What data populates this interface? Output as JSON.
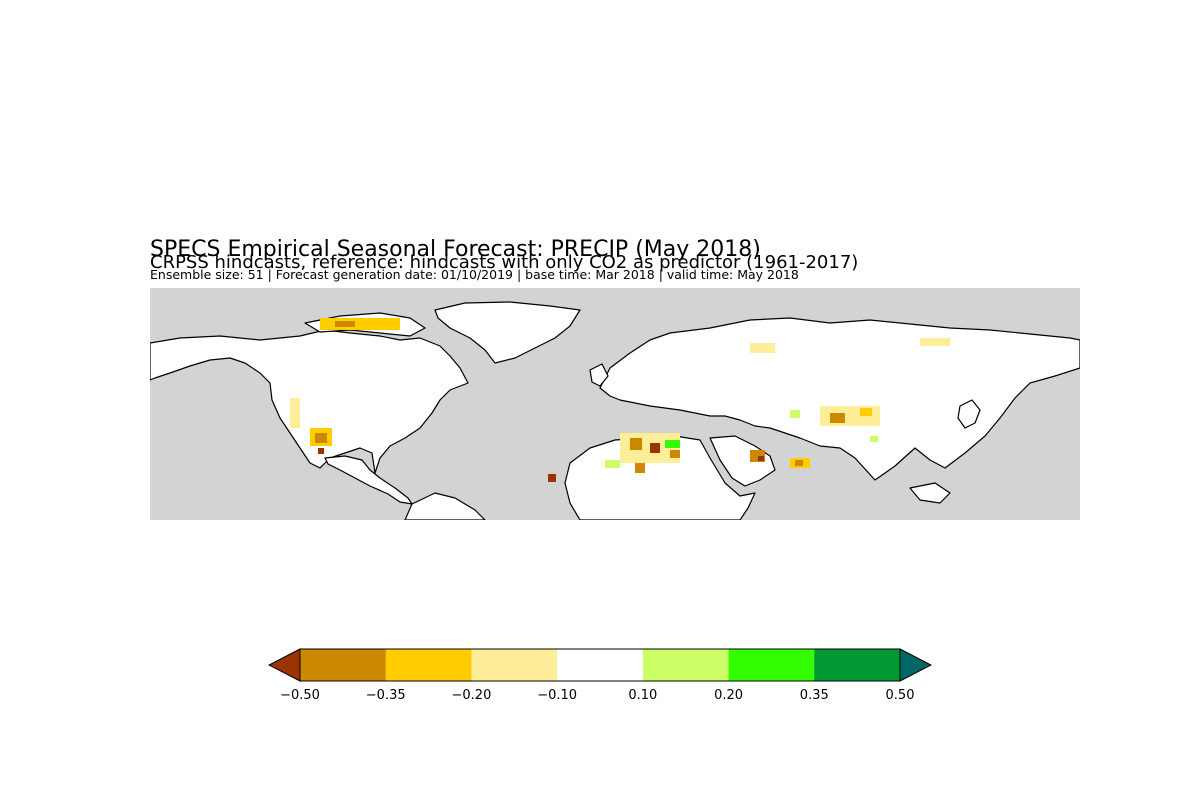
{
  "header": {
    "title": "SPECS Empirical Seasonal Forecast: PRECIP (May 2018)",
    "subtitle": "CRPSS hindcasts, reference: hindcasts with only CO2 as predictor (1961-2017)",
    "info": "Ensemble size: 51 | Forecast generation date: 01/10/2019 | base time: Mar 2018 | valid time: May 2018"
  },
  "map": {
    "ocean_color": "#d3d3d3",
    "land_color": "#ffffff",
    "coastline_color": "#000000"
  },
  "colorbar": {
    "ticks": [
      "−0.50",
      "−0.35",
      "−0.20",
      "−0.10",
      "0.10",
      "0.20",
      "0.35",
      "0.50"
    ],
    "under_color": "#993300",
    "over_color": "#006666",
    "colors": [
      "#cc8800",
      "#ffcc00",
      "#ffee99",
      "#ffffff",
      "#ccff66",
      "#33ff00",
      "#009933"
    ]
  }
}
